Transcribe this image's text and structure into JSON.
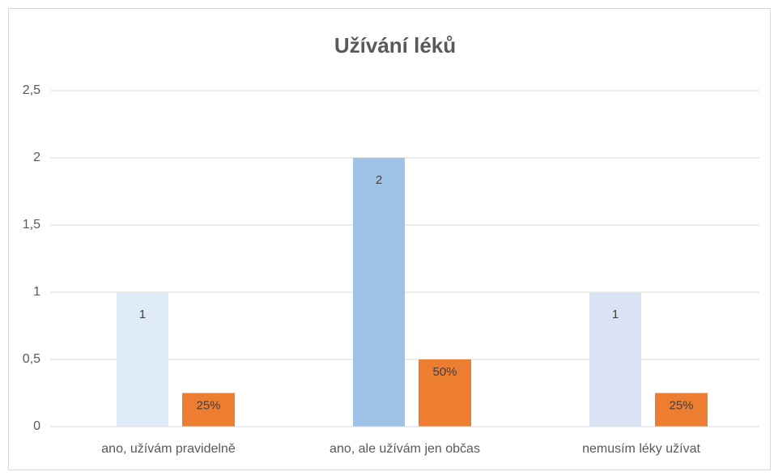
{
  "chart_data": {
    "type": "bar",
    "title": "Užívání léků",
    "categories": [
      "ano, užívám pravidelně",
      "ano, ale užívám jen občas",
      "nemusím léky užívat"
    ],
    "series": [
      {
        "colors": [
          "#deebf7",
          "#9dc3e6",
          "#dae3f3"
        ],
        "values": [
          1,
          2,
          1
        ],
        "value_labels": [
          "1",
          "2",
          "1"
        ]
      },
      {
        "color": "#ed7d31",
        "values": [
          0.25,
          0.5,
          0.25
        ],
        "value_labels": [
          "25%",
          "50%",
          "25%"
        ]
      }
    ],
    "ylim": [
      0,
      2.5
    ],
    "yticks": [
      0,
      {
        "value": 0.5,
        "label": "0,5"
      },
      1,
      {
        "value": 1.5,
        "label": "1,5"
      },
      2,
      {
        "value": 2.5,
        "label": "2,5"
      }
    ],
    "grid": true
  }
}
